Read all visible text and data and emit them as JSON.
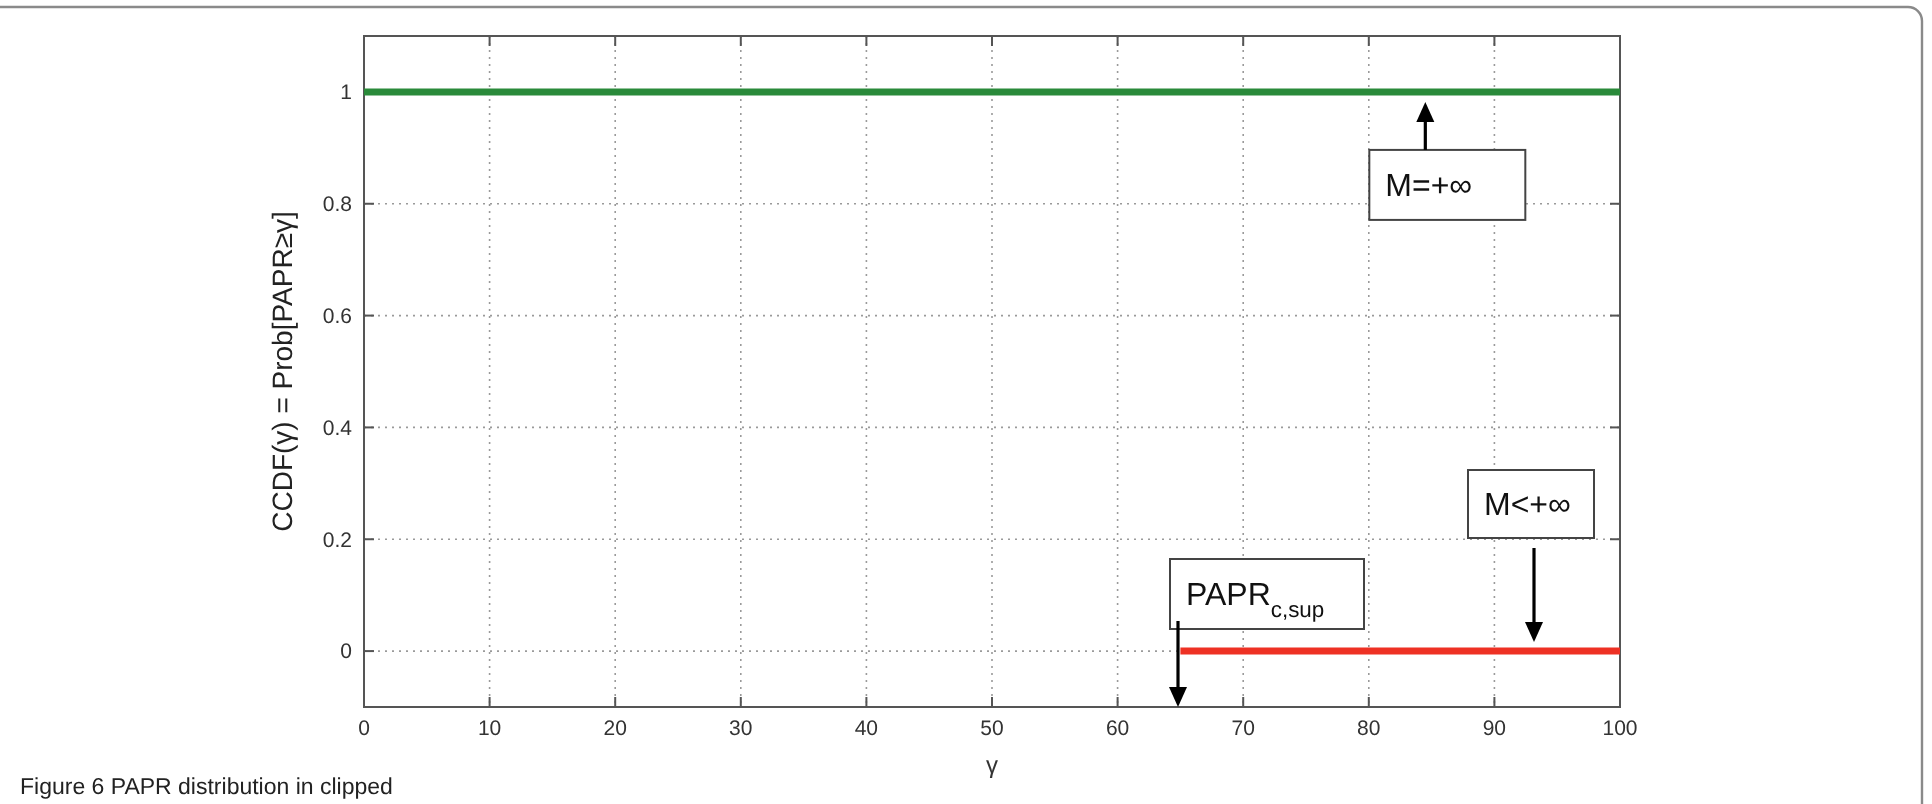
{
  "chart_data": {
    "type": "line",
    "xlabel": "γ",
    "ylabel": "CCDF(γ) = Prob[PAPR≥γ]",
    "xlim": [
      0,
      100
    ],
    "ylim": [
      -0.1,
      1.1
    ],
    "xticks": [
      0,
      10,
      20,
      30,
      40,
      50,
      60,
      70,
      80,
      90,
      100
    ],
    "yticks": [
      0,
      0.2,
      0.4,
      0.6,
      0.8,
      1
    ],
    "grid": true,
    "series": [
      {
        "color": "#2a8a3a",
        "x": [
          0,
          100
        ],
        "values": [
          1,
          1
        ]
      },
      {
        "color": "#ee3124",
        "x": [
          65,
          100
        ],
        "values": [
          0,
          0
        ]
      }
    ],
    "annotations": [
      {
        "text": "M=+∞",
        "x": 84.5,
        "y": 1
      },
      "M<+∞",
      "PAPR$_{c,sup}$",
      "Figure 6 PAPR distribution in clipped"
    ]
  }
}
